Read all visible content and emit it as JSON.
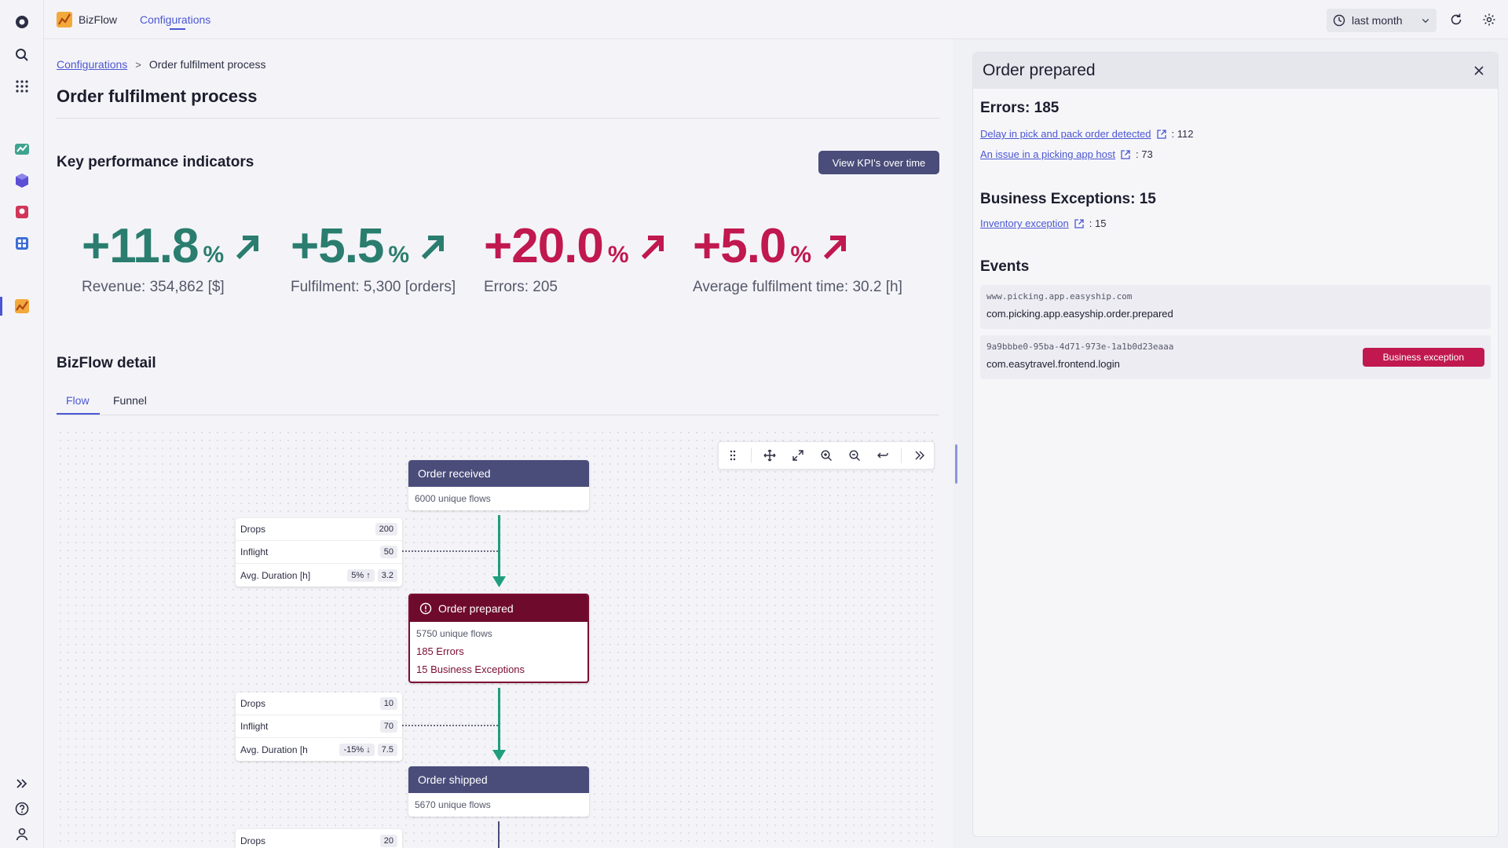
{
  "app": {
    "name": "BizFlow",
    "tab": "Configurations"
  },
  "timeframe": {
    "label": "last month"
  },
  "breadcrumb": {
    "root": "Configurations",
    "separator": ">",
    "current": "Order fulfilment process"
  },
  "page": {
    "title": "Order fulfilment process"
  },
  "kpi": {
    "title": "Key performance indicators",
    "button": "View KPI's over time",
    "items": [
      {
        "value": "+11.8",
        "unit": "%",
        "label": "Revenue: 354,862 [$]",
        "color": "#2a7d6f"
      },
      {
        "value": "+5.5",
        "unit": "%",
        "label": "Fulfilment: 5,300 [orders]",
        "color": "#2a7d6f"
      },
      {
        "value": "+20.0",
        "unit": "%",
        "label": "Errors: 205",
        "color": "#c0184f"
      },
      {
        "value": "+5.0",
        "unit": "%",
        "label": "Average fulfilment time: 30.2 [h]",
        "color": "#c0184f"
      }
    ]
  },
  "detail": {
    "title": "BizFlow detail",
    "tabs": [
      "Flow",
      "Funnel"
    ],
    "nodes": {
      "received": {
        "title": "Order received",
        "flows": "6000 unique flows"
      },
      "prepared": {
        "title": "Order prepared",
        "flows": "5750 unique flows",
        "errors": "185 Errors",
        "exceptions": "15 Business Exceptions"
      },
      "shipped": {
        "title": "Order shipped",
        "flows": "5670 unique flows"
      }
    },
    "stats1": {
      "drops_label": "Drops",
      "drops": "200",
      "inflight_label": "Inflight",
      "inflight": "50",
      "duration_label": "Avg. Duration [h]",
      "trend": "5%",
      "duration": "3.2"
    },
    "stats2": {
      "drops_label": "Drops",
      "drops": "10",
      "inflight_label": "Inflight",
      "inflight": "70",
      "duration_label": "Avg. Duration [h",
      "trend": "-15%",
      "duration": "7.5"
    },
    "stats3": {
      "drops_label": "Drops",
      "drops": "20"
    }
  },
  "panel": {
    "title": "Order prepared",
    "errors_title": "Errors: 185",
    "errors": [
      {
        "label": "Delay in pick and pack order detected",
        "count": ": 112"
      },
      {
        "label": "An issue in a picking app host",
        "count": ": 73"
      }
    ],
    "exceptions_title": "Business Exceptions: 15",
    "exceptions": [
      {
        "label": "Inventory exception",
        "count": ": 15"
      }
    ],
    "events_title": "Events",
    "events": [
      {
        "source": "www.picking.app.easyship.com",
        "name": "com.picking.app.easyship.order.prepared"
      },
      {
        "source": "9a9bbbe0-95ba-4d71-973e-1a1b0d23eaaa",
        "name": "com.easytravel.frontend.login",
        "badge": "Business exception"
      }
    ]
  }
}
